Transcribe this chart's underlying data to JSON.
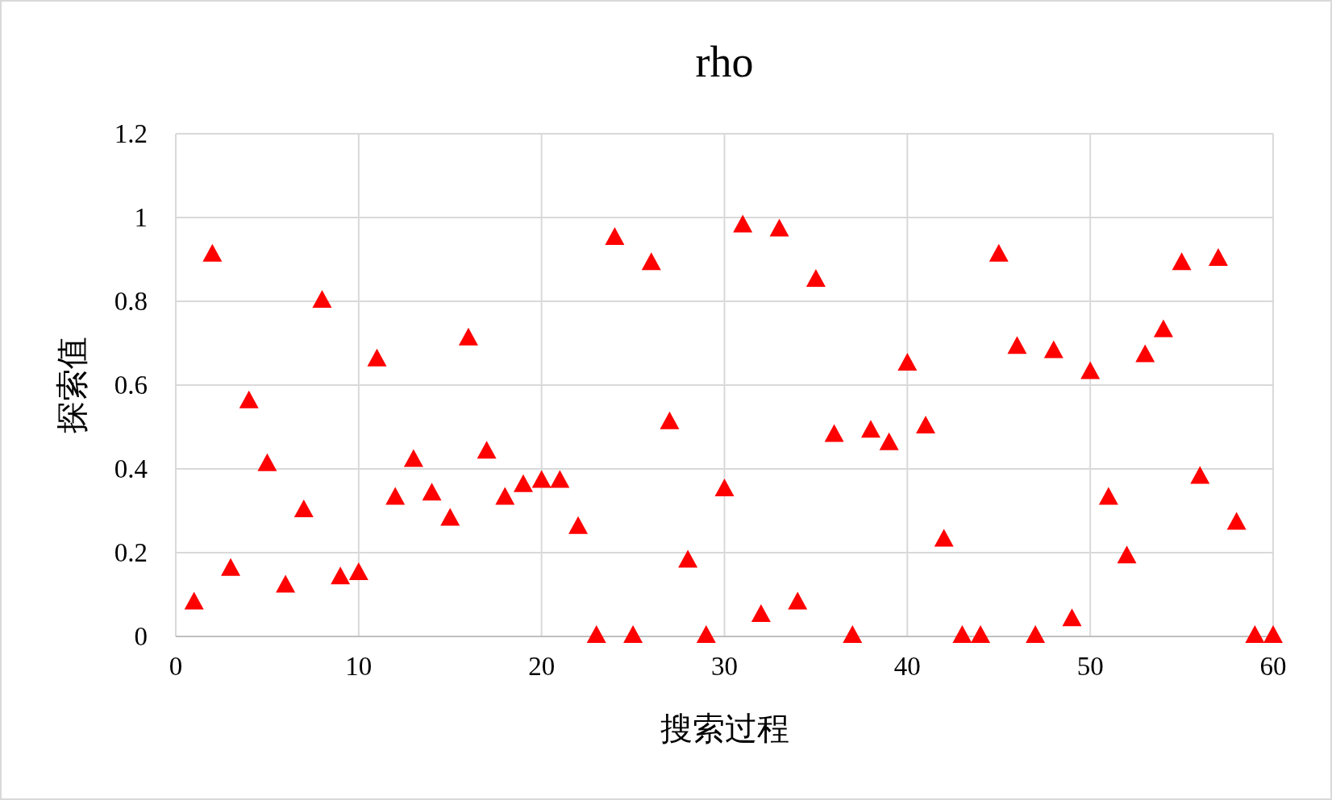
{
  "chart_data": {
    "type": "scatter",
    "title": "rho",
    "xlabel": "搜索过程",
    "ylabel": "探索值",
    "x": [
      1,
      2,
      3,
      4,
      5,
      6,
      7,
      8,
      9,
      10,
      11,
      12,
      13,
      14,
      15,
      16,
      17,
      18,
      19,
      20,
      21,
      22,
      23,
      24,
      25,
      26,
      27,
      28,
      29,
      30,
      31,
      32,
      33,
      34,
      35,
      36,
      37,
      38,
      39,
      40,
      41,
      42,
      43,
      44,
      45,
      46,
      47,
      48,
      49,
      50,
      51,
      52,
      53,
      54,
      55,
      56,
      57,
      58,
      59,
      60
    ],
    "series": [
      {
        "color": "#ff0000",
        "values": [
          0.08,
          0.91,
          0.16,
          0.56,
          0.41,
          0.12,
          0.3,
          0.8,
          0.14,
          0.15,
          0.66,
          0.33,
          0.42,
          0.34,
          0.28,
          0.71,
          0.44,
          0.33,
          0.36,
          0.37,
          0.37,
          0.26,
          0,
          0.95,
          0,
          0.89,
          0.51,
          0.18,
          0,
          0.35,
          0.98,
          0.05,
          0.97,
          0.08,
          0.85,
          0.48,
          0,
          0.49,
          0.46,
          0.65,
          0.5,
          0.23,
          0,
          0,
          0.91,
          0.69,
          0,
          0.68,
          0.04,
          0.63,
          0.33,
          0.19,
          0.67,
          0.73,
          0.89,
          0.38,
          0.9,
          0.27,
          0,
          0
        ]
      }
    ],
    "xlim": [
      0,
      60
    ],
    "ylim": [
      0,
      1.2
    ],
    "xticks": [
      0,
      10,
      20,
      30,
      40,
      50,
      60
    ],
    "yticks": [
      0,
      0.2,
      0.4,
      0.6,
      0.8,
      1,
      1.2
    ],
    "grid": true,
    "marker": "triangle"
  }
}
